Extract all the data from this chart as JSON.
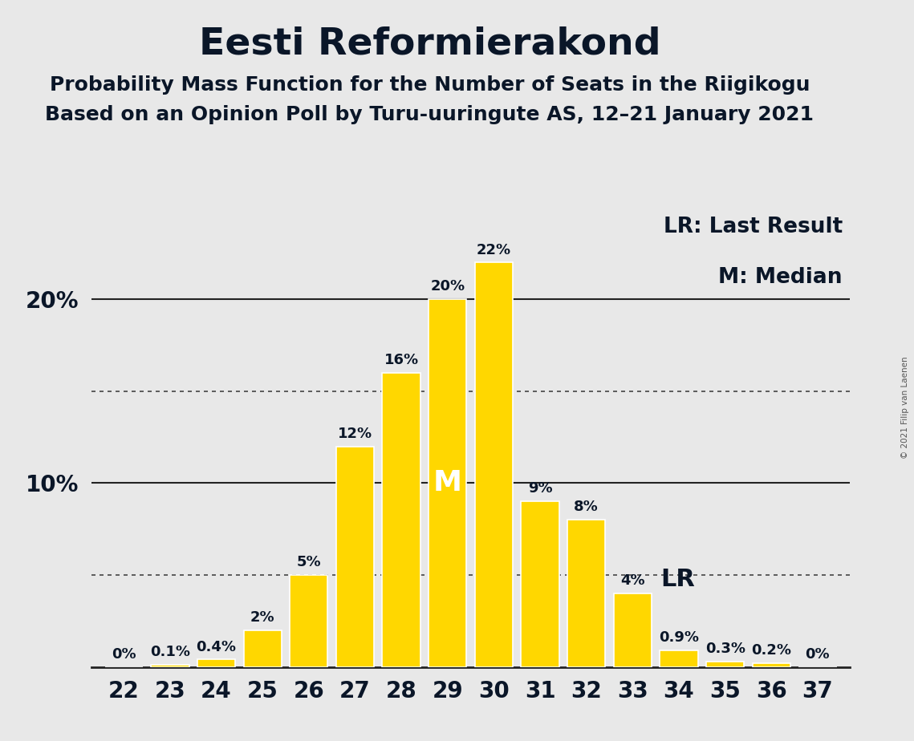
{
  "title": "Eesti Reformierakond",
  "subtitle1": "Probability Mass Function for the Number of Seats in the Riigikogu",
  "subtitle2": "Based on an Opinion Poll by Turu-uuringute AS, 12–21 January 2021",
  "copyright": "© 2021 Filip van Laenen",
  "legend_lr": "LR: Last Result",
  "legend_m": "M: Median",
  "seats": [
    22,
    23,
    24,
    25,
    26,
    27,
    28,
    29,
    30,
    31,
    32,
    33,
    34,
    35,
    36,
    37
  ],
  "probabilities": [
    0.001,
    0.1,
    0.4,
    2.0,
    5.0,
    12.0,
    16.0,
    20.0,
    22.0,
    9.0,
    8.0,
    4.0,
    0.9,
    0.3,
    0.2,
    0.001
  ],
  "labels": [
    "0%",
    "0.1%",
    "0.4%",
    "2%",
    "5%",
    "12%",
    "16%",
    "20%",
    "22%",
    "9%",
    "8%",
    "4%",
    "0.9%",
    "0.3%",
    "0.2%",
    "0%"
  ],
  "bar_color": "#FFD700",
  "bar_edge_color": "#FFFFFF",
  "background_color": "#E8E8E8",
  "title_color": "#0A1628",
  "text_color": "#0A1628",
  "median_seat": 29,
  "lr_seat": 33,
  "ylim": [
    0,
    25
  ],
  "solid_line_y": [
    10,
    20
  ],
  "dotted_line_y": [
    5,
    15
  ],
  "title_fontsize": 34,
  "subtitle_fontsize": 18,
  "label_fontsize": 13,
  "tick_fontsize": 20,
  "annotation_fontsize": 20,
  "legend_fontsize": 19,
  "m_fontsize": 26,
  "lr_inline_fontsize": 22
}
